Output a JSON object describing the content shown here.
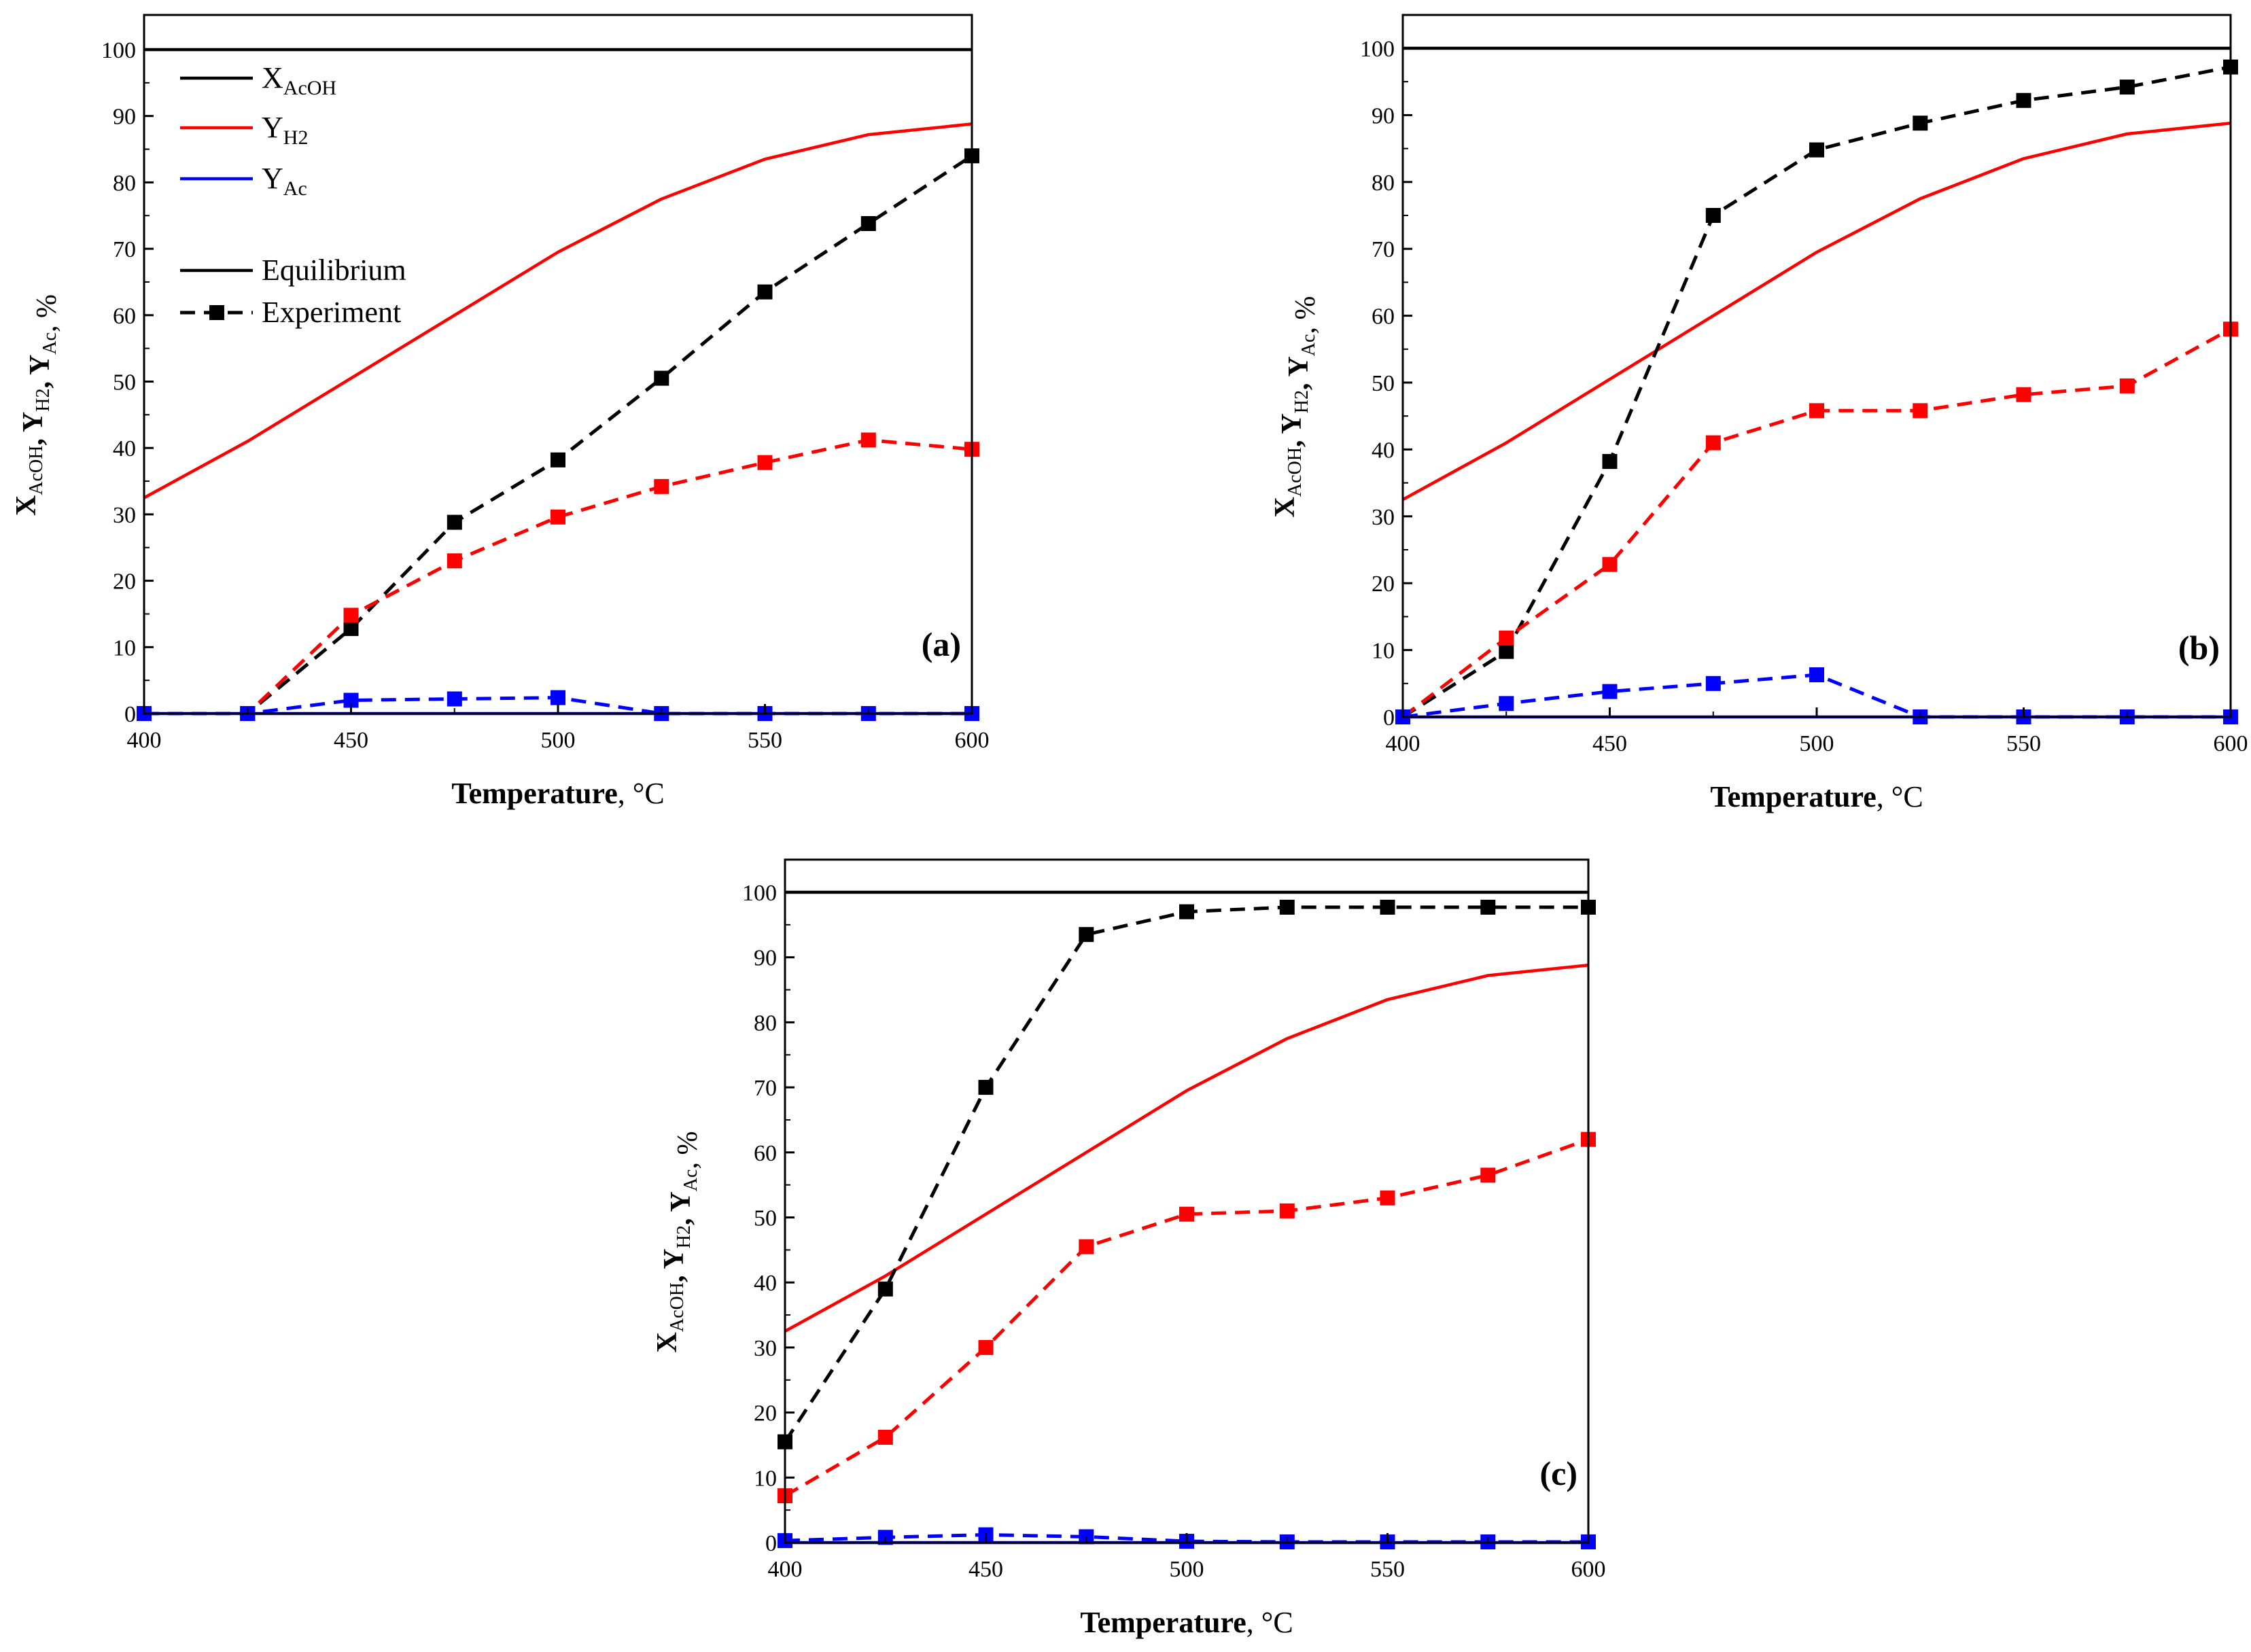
{
  "figure": {
    "panels": [
      "a",
      "b",
      "c"
    ]
  },
  "legend": {
    "x_label_main": "X",
    "x_label_sub": "AcOH",
    "h2_label_main": "Y",
    "h2_label_sub": "H2",
    "ac_label_main": "Y",
    "ac_label_sub": "Ac",
    "equilibrium": "Equilibrium",
    "experiment": "Experiment"
  },
  "axis_text": {
    "xlabel_bold": "Temperature",
    "xlabel_unit": ", °C",
    "ylabel_parts": [
      {
        "main": "X",
        "sub": "AcOH",
        "bold": true
      },
      {
        "main": ", ",
        "sub": "",
        "bold": true
      },
      {
        "main": "Y",
        "sub": "H2",
        "bold": true
      },
      {
        "main": ", ",
        "sub": "",
        "bold": true
      },
      {
        "main": "Y",
        "sub": "Ac",
        "bold": true
      },
      {
        "main": ", %",
        "sub": "",
        "bold": false
      }
    ]
  },
  "chart_data": [
    {
      "type": "line",
      "panel": "(a)",
      "xlim": [
        400,
        600
      ],
      "ylim": [
        0,
        100
      ],
      "xticks": [
        400,
        450,
        500,
        550,
        600
      ],
      "yticks": [
        0,
        10,
        20,
        30,
        40,
        50,
        60,
        70,
        80,
        90,
        100
      ],
      "series": [
        {
          "name": "X_AcOH equilibrium",
          "color": "#000000",
          "style": "solid",
          "x": [
            400,
            600
          ],
          "values": [
            100,
            100
          ]
        },
        {
          "name": "Y_H2 equilibrium",
          "color": "#ff0000",
          "style": "solid",
          "x": [
            400,
            425,
            450,
            475,
            500,
            525,
            550,
            575,
            600
          ],
          "values": [
            32.5,
            41,
            50.5,
            60,
            69.5,
            77.5,
            83.5,
            87.2,
            88.8
          ]
        },
        {
          "name": "Y_Ac equilibrium",
          "color": "#0000ff",
          "style": "solid",
          "x": [
            400,
            600
          ],
          "values": [
            0,
            0
          ]
        },
        {
          "name": "X_AcOH experiment",
          "color": "#000000",
          "style": "dashed",
          "x": [
            400,
            425,
            450,
            475,
            500,
            525,
            550,
            575,
            600
          ],
          "values": [
            0,
            0,
            12.8,
            28.8,
            38.2,
            50.5,
            63.5,
            73.8,
            84
          ]
        },
        {
          "name": "Y_H2 experiment",
          "color": "#ff0000",
          "style": "dashed",
          "x": [
            400,
            425,
            450,
            475,
            500,
            525,
            550,
            575,
            600
          ],
          "values": [
            0,
            0,
            14.8,
            23,
            29.6,
            34.2,
            37.8,
            41.2,
            39.8
          ]
        },
        {
          "name": "Y_Ac experiment",
          "color": "#0000ff",
          "style": "dashed",
          "x": [
            400,
            425,
            450,
            475,
            500,
            525,
            550,
            575,
            600
          ],
          "values": [
            0,
            0,
            2,
            2.2,
            2.4,
            0,
            0,
            0,
            0
          ]
        }
      ]
    },
    {
      "type": "line",
      "panel": "(b)",
      "xlim": [
        400,
        600
      ],
      "ylim": [
        0,
        100
      ],
      "xticks": [
        400,
        450,
        500,
        550,
        600
      ],
      "yticks": [
        0,
        10,
        20,
        30,
        40,
        50,
        60,
        70,
        80,
        90,
        100
      ],
      "series": [
        {
          "name": "X_AcOH equilibrium",
          "color": "#000000",
          "style": "solid",
          "x": [
            400,
            600
          ],
          "values": [
            100,
            100
          ]
        },
        {
          "name": "Y_H2 equilibrium",
          "color": "#ff0000",
          "style": "solid",
          "x": [
            400,
            425,
            450,
            475,
            500,
            525,
            550,
            575,
            600
          ],
          "values": [
            32.5,
            41,
            50.5,
            60,
            69.5,
            77.5,
            83.5,
            87.2,
            88.8
          ]
        },
        {
          "name": "Y_Ac equilibrium",
          "color": "#0000ff",
          "style": "solid",
          "x": [
            400,
            600
          ],
          "values": [
            0,
            0
          ]
        },
        {
          "name": "X_AcOH experiment",
          "color": "#000000",
          "style": "dashed",
          "x": [
            400,
            425,
            450,
            475,
            500,
            525,
            550,
            575,
            600
          ],
          "values": [
            0,
            9.8,
            38.2,
            75,
            84.8,
            88.8,
            92.2,
            94.2,
            97.2
          ]
        },
        {
          "name": "Y_H2 experiment",
          "color": "#ff0000",
          "style": "dashed",
          "x": [
            400,
            425,
            450,
            475,
            500,
            525,
            550,
            575,
            600
          ],
          "values": [
            0,
            11.8,
            22.8,
            41,
            45.8,
            45.8,
            48.2,
            49.5,
            58
          ]
        },
        {
          "name": "Y_Ac experiment",
          "color": "#0000ff",
          "style": "dashed",
          "x": [
            400,
            425,
            450,
            475,
            500,
            525,
            550,
            575,
            600
          ],
          "values": [
            0,
            2,
            3.8,
            5,
            6.3,
            0,
            0,
            0,
            0
          ]
        }
      ]
    },
    {
      "type": "line",
      "panel": "(c)",
      "xlim": [
        400,
        600
      ],
      "ylim": [
        0,
        100
      ],
      "xticks": [
        400,
        450,
        500,
        550,
        600
      ],
      "yticks": [
        0,
        10,
        20,
        30,
        40,
        50,
        60,
        70,
        80,
        90,
        100
      ],
      "series": [
        {
          "name": "X_AcOH equilibrium",
          "color": "#000000",
          "style": "solid",
          "x": [
            400,
            600
          ],
          "values": [
            100,
            100
          ]
        },
        {
          "name": "Y_H2 equilibrium",
          "color": "#ff0000",
          "style": "solid",
          "x": [
            400,
            425,
            450,
            475,
            500,
            525,
            550,
            575,
            600
          ],
          "values": [
            32.5,
            41,
            50.5,
            60,
            69.5,
            77.5,
            83.5,
            87.2,
            88.8
          ]
        },
        {
          "name": "Y_Ac equilibrium",
          "color": "#0000ff",
          "style": "solid",
          "x": [
            400,
            600
          ],
          "values": [
            0,
            0
          ]
        },
        {
          "name": "X_AcOH experiment",
          "color": "#000000",
          "style": "dashed",
          "x": [
            400,
            425,
            450,
            475,
            500,
            525,
            550,
            575,
            600
          ],
          "values": [
            15.5,
            39,
            70,
            93.5,
            97,
            97.7,
            97.7,
            97.7,
            97.7
          ]
        },
        {
          "name": "Y_H2 experiment",
          "color": "#ff0000",
          "style": "dashed",
          "x": [
            400,
            425,
            450,
            475,
            500,
            525,
            550,
            575,
            600
          ],
          "values": [
            7.2,
            16.2,
            30,
            45.5,
            50.5,
            51,
            53,
            56.5,
            62
          ]
        },
        {
          "name": "Y_Ac experiment",
          "color": "#0000ff",
          "style": "dashed",
          "x": [
            400,
            425,
            450,
            475,
            500,
            525,
            550,
            575,
            600
          ],
          "values": [
            0.3,
            0.8,
            1.2,
            0.9,
            0.2,
            0.1,
            0.1,
            0.1,
            0.1
          ]
        }
      ]
    }
  ]
}
